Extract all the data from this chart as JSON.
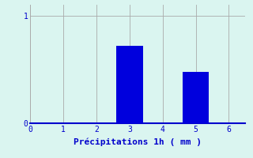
{
  "bar_positions": [
    3,
    5
  ],
  "bar_values": [
    0.72,
    0.48
  ],
  "bar_color": "#0000dd",
  "background_color": "#daf5f0",
  "grid_color": "#aaaaaa",
  "axis_color": "#0000cc",
  "xlabel": "Précipitations 1h ( mm )",
  "xlabel_color": "#0000cc",
  "tick_color": "#0000cc",
  "xlim": [
    0,
    6.5
  ],
  "ylim": [
    0,
    1.1
  ],
  "yticks": [
    0,
    1
  ],
  "xticks": [
    0,
    1,
    2,
    3,
    4,
    5,
    6
  ],
  "bar_width": 0.8,
  "figsize": [
    3.2,
    2.0
  ],
  "dpi": 100
}
